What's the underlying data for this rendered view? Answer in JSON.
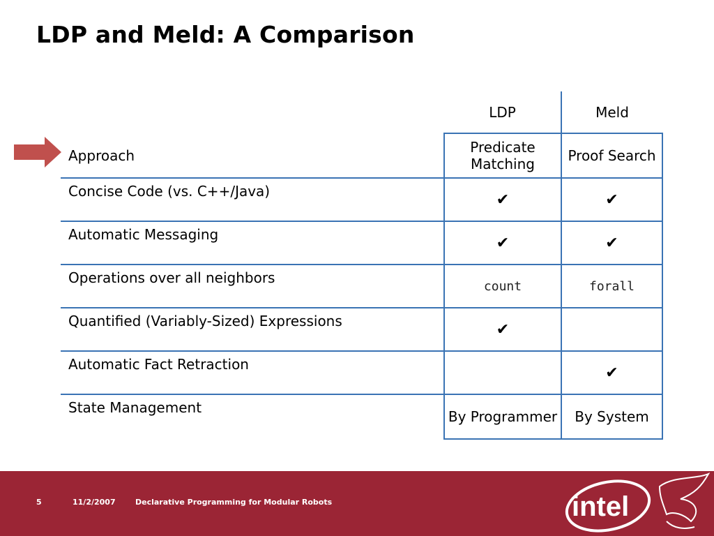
{
  "slide": {
    "title": "LDP and Meld: A Comparison",
    "footer": {
      "page_number": "5",
      "date": "11/2/2007",
      "caption": "Declarative Programming for Modular Robots"
    },
    "logo_text": "intel"
  },
  "table": {
    "columns": [
      "LDP",
      "Meld"
    ],
    "rows": [
      {
        "label": "Approach",
        "ldp": "Predicate Matching",
        "meld": "Proof Search"
      },
      {
        "label": "Concise Code (vs. C++/Java)",
        "ldp": "✔",
        "meld": "✔"
      },
      {
        "label": "Automatic Messaging",
        "ldp": "✔",
        "meld": "✔"
      },
      {
        "label": "Operations over all neighbors",
        "ldp": "count",
        "meld": "forall"
      },
      {
        "label": "Quantified (Variably-Sized) Expressions",
        "ldp": "✔",
        "meld": ""
      },
      {
        "label": "Automatic Fact Retraction",
        "ldp": "",
        "meld": "✔"
      },
      {
        "label": "State Management",
        "ldp": "By Programmer",
        "meld": "By System"
      }
    ]
  },
  "colors": {
    "accent_red": "#9b2535",
    "table_border": "#3a73b4",
    "arrow": "#c0504d"
  },
  "icons": {
    "check": "checkmark-icon",
    "arrow": "right-arrow-icon"
  }
}
